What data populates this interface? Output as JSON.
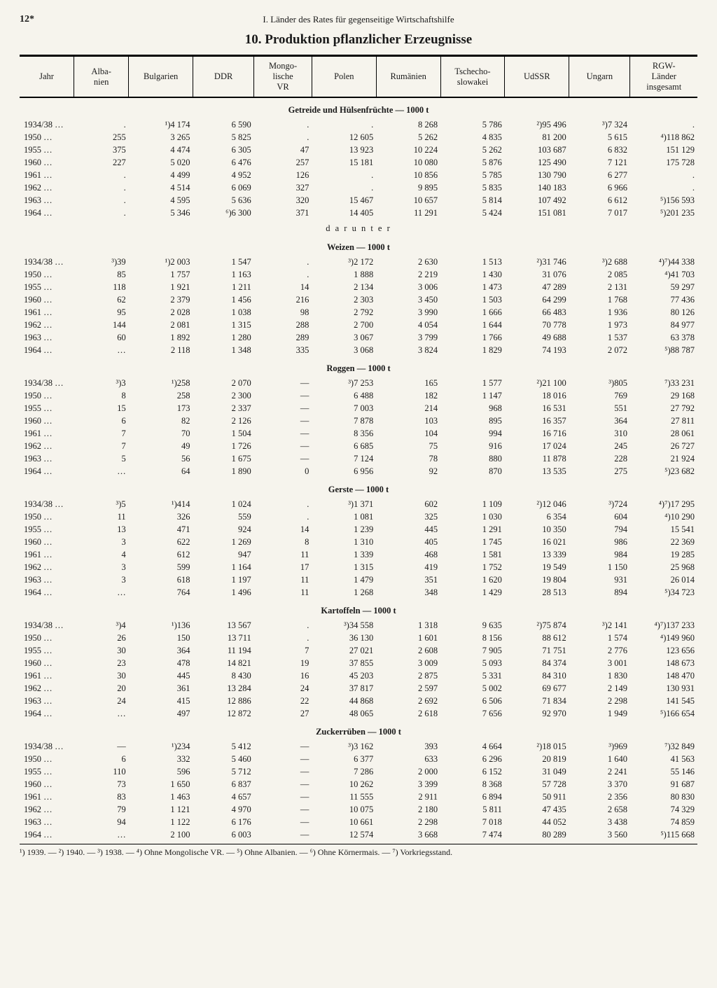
{
  "page_number": "12*",
  "running_head": "I. Länder des Rates für gegenseitige Wirtschaftshilfe",
  "title": "10. Produktion pflanzlicher Erzeugnisse",
  "columns": [
    "Jahr",
    "Alba-\nnien",
    "Bulgarien",
    "DDR",
    "Mongo-\nlische\nVR",
    "Polen",
    "Rumänien",
    "Tschecho-\nslowakei",
    "UdSSR",
    "Ungarn",
    "RGW-\nLänder\ninsgesamt"
  ],
  "col_widths": [
    "8%",
    "8%",
    "9.5%",
    "9%",
    "8.5%",
    "9.5%",
    "9.5%",
    "9.5%",
    "9.5%",
    "9%",
    "10%"
  ],
  "sections": [
    {
      "heading": "Getreide und Hülsenfrüchte — 1000 t",
      "rows": [
        [
          "1934/38 …",
          ".",
          "¹)4 174",
          "6 590",
          ".",
          ".",
          "8 268",
          "5 786",
          "²)95 496",
          "³)7 324",
          "."
        ],
        [
          "1950 …",
          "255",
          "3 265",
          "5 825",
          ".",
          "12 605",
          "5 262",
          "4 835",
          "81 200",
          "5 615",
          "⁴)118 862"
        ],
        [
          "1955 …",
          "375",
          "4 474",
          "6 305",
          "47",
          "13 923",
          "10 224",
          "5 262",
          "103 687",
          "6 832",
          "151 129"
        ],
        [
          "1960 …",
          "227",
          "5 020",
          "6 476",
          "257",
          "15 181",
          "10 080",
          "5 876",
          "125 490",
          "7 121",
          "175 728"
        ],
        [
          "1961 …",
          ".",
          "4 499",
          "4 952",
          "126",
          ".",
          "10 856",
          "5 785",
          "130 790",
          "6 277",
          "."
        ],
        [
          "1962 …",
          ".",
          "4 514",
          "6 069",
          "327",
          ".",
          "9 895",
          "5 835",
          "140 183",
          "6 966",
          "."
        ],
        [
          "1963 …",
          ".",
          "4 595",
          "5 636",
          "320",
          "15 467",
          "10 657",
          "5 814",
          "107 492",
          "6 612",
          "⁵)156 593"
        ],
        [
          "1964 …",
          ".",
          "5 346",
          "⁶)6 300",
          "371",
          "14 405",
          "11 291",
          "5 424",
          "151 081",
          "7 017",
          "⁵)201 235"
        ]
      ]
    },
    {
      "subhead": "d a r u n t e r",
      "heading": "Weizen — 1000 t",
      "rows": [
        [
          "1934/38 …",
          "³)39",
          "¹)2 003",
          "1 547",
          ".",
          "³)2 172",
          "2 630",
          "1 513",
          "²)31 746",
          "³)2 688",
          "⁴)⁷)44 338"
        ],
        [
          "1950 …",
          "85",
          "1 757",
          "1 163",
          ".",
          "1 888",
          "2 219",
          "1 430",
          "31 076",
          "2 085",
          "⁴)41 703"
        ],
        [
          "1955 …",
          "118",
          "1 921",
          "1 211",
          "14",
          "2 134",
          "3 006",
          "1 473",
          "47 289",
          "2 131",
          "59 297"
        ],
        [
          "1960 …",
          "62",
          "2 379",
          "1 456",
          "216",
          "2 303",
          "3 450",
          "1 503",
          "64 299",
          "1 768",
          "77 436"
        ],
        [
          "1961 …",
          "95",
          "2 028",
          "1 038",
          "98",
          "2 792",
          "3 990",
          "1 666",
          "66 483",
          "1 936",
          "80 126"
        ],
        [
          "1962 …",
          "144",
          "2 081",
          "1 315",
          "288",
          "2 700",
          "4 054",
          "1 644",
          "70 778",
          "1 973",
          "84 977"
        ],
        [
          "1963 …",
          "60",
          "1 892",
          "1 280",
          "289",
          "3 067",
          "3 799",
          "1 766",
          "49 688",
          "1 537",
          "63 378"
        ],
        [
          "1964 …",
          "…",
          "2 118",
          "1 348",
          "335",
          "3 068",
          "3 824",
          "1 829",
          "74 193",
          "2 072",
          "⁵)88 787"
        ]
      ]
    },
    {
      "heading": "Roggen — 1000 t",
      "rows": [
        [
          "1934/38 …",
          "³)3",
          "¹)258",
          "2 070",
          "—",
          "³)7 253",
          "165",
          "1 577",
          "²)21 100",
          "³)805",
          "⁷)33 231"
        ],
        [
          "1950 …",
          "8",
          "258",
          "2 300",
          "—",
          "6 488",
          "182",
          "1 147",
          "18 016",
          "769",
          "29 168"
        ],
        [
          "1955 …",
          "15",
          "173",
          "2 337",
          "—",
          "7 003",
          "214",
          "968",
          "16 531",
          "551",
          "27 792"
        ],
        [
          "1960 …",
          "6",
          "82",
          "2 126",
          "—",
          "7 878",
          "103",
          "895",
          "16 357",
          "364",
          "27 811"
        ],
        [
          "1961 …",
          "7",
          "70",
          "1 504",
          "—",
          "8 356",
          "104",
          "994",
          "16 716",
          "310",
          "28 061"
        ],
        [
          "1962 …",
          "7",
          "49",
          "1 726",
          "—",
          "6 685",
          "75",
          "916",
          "17 024",
          "245",
          "26 727"
        ],
        [
          "1963 …",
          "5",
          "56",
          "1 675",
          "—",
          "7 124",
          "78",
          "880",
          "11 878",
          "228",
          "21 924"
        ],
        [
          "1964 …",
          "…",
          "64",
          "1 890",
          "0",
          "6 956",
          "92",
          "870",
          "13 535",
          "275",
          "⁵)23 682"
        ]
      ]
    },
    {
      "heading": "Gerste — 1000 t",
      "rows": [
        [
          "1934/38 …",
          "³)5",
          "¹)414",
          "1 024",
          ".",
          "³)1 371",
          "602",
          "1 109",
          "²)12 046",
          "³)724",
          "⁴)⁷)17 295"
        ],
        [
          "1950 …",
          "11",
          "326",
          "559",
          ".",
          "1 081",
          "325",
          "1 030",
          "6 354",
          "604",
          "⁴)10 290"
        ],
        [
          "1955 …",
          "13",
          "471",
          "924",
          "14",
          "1 239",
          "445",
          "1 291",
          "10 350",
          "794",
          "15 541"
        ],
        [
          "1960 …",
          "3",
          "622",
          "1 269",
          "8",
          "1 310",
          "405",
          "1 745",
          "16 021",
          "986",
          "22 369"
        ],
        [
          "1961 …",
          "4",
          "612",
          "947",
          "11",
          "1 339",
          "468",
          "1 581",
          "13 339",
          "984",
          "19 285"
        ],
        [
          "1962 …",
          "3",
          "599",
          "1 164",
          "17",
          "1 315",
          "419",
          "1 752",
          "19 549",
          "1 150",
          "25 968"
        ],
        [
          "1963 …",
          "3",
          "618",
          "1 197",
          "11",
          "1 479",
          "351",
          "1 620",
          "19 804",
          "931",
          "26 014"
        ],
        [
          "1964 …",
          "…",
          "764",
          "1 496",
          "11",
          "1 268",
          "348",
          "1 429",
          "28 513",
          "894",
          "⁵)34 723"
        ]
      ]
    },
    {
      "heading": "Kartoffeln — 1000 t",
      "rows": [
        [
          "1934/38 …",
          "³)4",
          "¹)136",
          "13 567",
          ".",
          "³)34 558",
          "1 318",
          "9 635",
          "²)75 874",
          "³)2 141",
          "⁴)⁷)137 233"
        ],
        [
          "1950 …",
          "26",
          "150",
          "13 711",
          ".",
          "36 130",
          "1 601",
          "8 156",
          "88 612",
          "1 574",
          "⁴)149 960"
        ],
        [
          "1955 …",
          "30",
          "364",
          "11 194",
          "7",
          "27 021",
          "2 608",
          "7 905",
          "71 751",
          "2 776",
          "123 656"
        ],
        [
          "1960 …",
          "23",
          "478",
          "14 821",
          "19",
          "37 855",
          "3 009",
          "5 093",
          "84 374",
          "3 001",
          "148 673"
        ],
        [
          "1961 …",
          "30",
          "445",
          "8 430",
          "16",
          "45 203",
          "2 875",
          "5 331",
          "84 310",
          "1 830",
          "148 470"
        ],
        [
          "1962 …",
          "20",
          "361",
          "13 284",
          "24",
          "37 817",
          "2 597",
          "5 002",
          "69 677",
          "2 149",
          "130 931"
        ],
        [
          "1963 …",
          "24",
          "415",
          "12 886",
          "22",
          "44 868",
          "2 692",
          "6 506",
          "71 834",
          "2 298",
          "141 545"
        ],
        [
          "1964 …",
          "…",
          "497",
          "12 872",
          "27",
          "48 065",
          "2 618",
          "7 656",
          "92 970",
          "1 949",
          "⁵)166 654"
        ]
      ]
    },
    {
      "heading": "Zuckerrüben — 1000 t",
      "rows": [
        [
          "1934/38 …",
          "—",
          "¹)234",
          "5 412",
          "—",
          "³)3 162",
          "393",
          "4 664",
          "²)18 015",
          "³)969",
          "⁷)32 849"
        ],
        [
          "1950 …",
          "6",
          "332",
          "5 460",
          "—",
          "6 377",
          "633",
          "6 296",
          "20 819",
          "1 640",
          "41 563"
        ],
        [
          "1955 …",
          "110",
          "596",
          "5 712",
          "—",
          "7 286",
          "2 000",
          "6 152",
          "31 049",
          "2 241",
          "55 146"
        ],
        [
          "1960 …",
          "73",
          "1 650",
          "6 837",
          "—",
          "10 262",
          "3 399",
          "8 368",
          "57 728",
          "3 370",
          "91 687"
        ],
        [
          "1961 …",
          "83",
          "1 463",
          "4 657",
          "—",
          "11 555",
          "2 911",
          "6 894",
          "50 911",
          "2 356",
          "80 830"
        ],
        [
          "1962 …",
          "79",
          "1 121",
          "4 970",
          "—",
          "10 075",
          "2 180",
          "5 811",
          "47 435",
          "2 658",
          "74 329"
        ],
        [
          "1963 …",
          "94",
          "1 122",
          "6 176",
          "—",
          "10 661",
          "2 298",
          "7 018",
          "44 052",
          "3 438",
          "74 859"
        ],
        [
          "1964 …",
          "…",
          "2 100",
          "6 003",
          "—",
          "12 574",
          "3 668",
          "7 474",
          "80 289",
          "3 560",
          "⁵)115 668"
        ]
      ]
    }
  ],
  "footnotes": "¹) 1939. — ²) 1940. — ³) 1938. — ⁴) Ohne Mongolische VR. — ⁵) Ohne Albanien. — ⁶) Ohne Körnermais. — ⁷) Vorkriegsstand."
}
